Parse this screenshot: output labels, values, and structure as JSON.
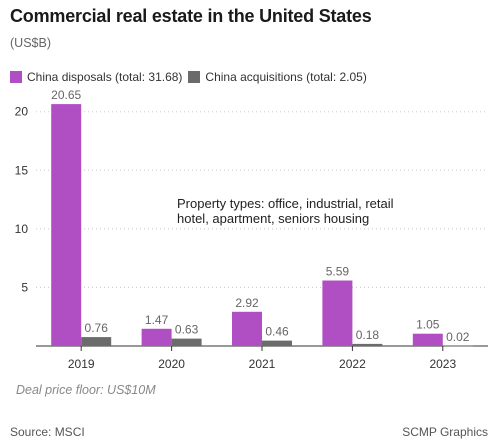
{
  "header": {
    "title": "Commercial real estate in the United States",
    "subtitle": "(US$B)"
  },
  "legend": {
    "items": [
      {
        "label": "China disposals (total: 31.68)",
        "color": "#b04fc4"
      },
      {
        "label": "China acquisitions (total: 2.05)",
        "color": "#6b6b6b"
      }
    ]
  },
  "note": "Deal price floor: US$10M",
  "footer": {
    "source": "Source: MSCI",
    "credit": "SCMP Graphics"
  },
  "chart_data": {
    "type": "bar",
    "title": "Commercial real estate in the United States",
    "subtitle": "(US$B)",
    "categories": [
      "2019",
      "2020",
      "2021",
      "2022",
      "2023"
    ],
    "series": [
      {
        "name": "China disposals (total: 31.68)",
        "values": [
          20.65,
          1.47,
          2.92,
          5.59,
          1.05
        ],
        "labels": [
          "20.65",
          "1.47",
          "2.92",
          "5.59",
          "1.05"
        ],
        "color": "#b04fc4"
      },
      {
        "name": "China acquisitions (total: 2.05)",
        "values": [
          0.76,
          0.63,
          0.46,
          0.18,
          0.02
        ],
        "labels": [
          "0.76",
          "0.63",
          "0.46",
          "0.18",
          "0.02"
        ],
        "color": "#6b6b6b"
      }
    ],
    "yticks": [
      5,
      10,
      15,
      20
    ],
    "ylim": [
      0,
      21
    ],
    "grid": "horizontal-dotted",
    "legend": "top-left",
    "annotation": {
      "lines": [
        "Property types: office, industrial, retail",
        "hotel, apartment, seniors housing"
      ]
    }
  }
}
